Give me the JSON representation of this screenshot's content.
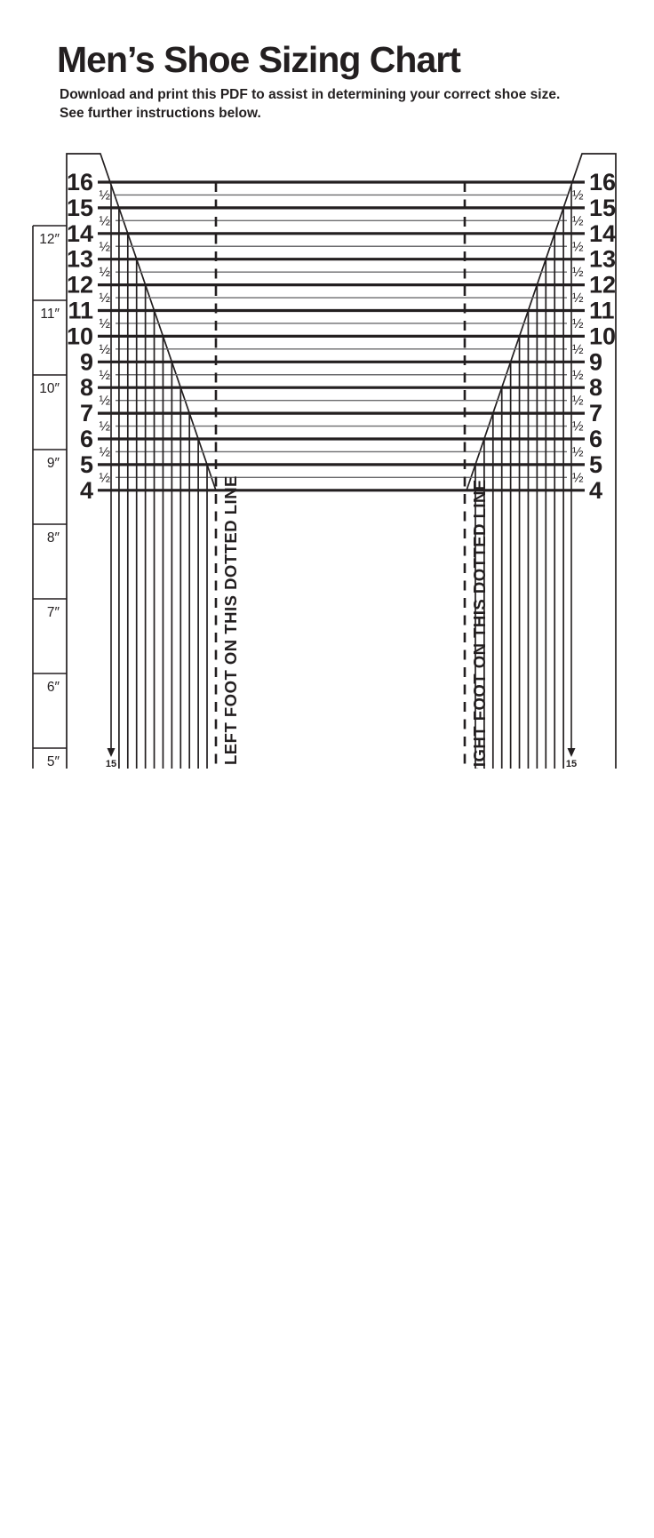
{
  "page": {
    "title": "Men’s Shoe Sizing Chart",
    "subtitle_line1": "Download and print this PDF to assist in determining your correct shoe size.",
    "subtitle_line2": "See further instructions below."
  },
  "chart": {
    "full_sizes": [
      "16",
      "15",
      "14",
      "13",
      "12",
      "11",
      "10",
      "9",
      "8",
      "7",
      "6",
      "5",
      "4"
    ],
    "half_label": "½",
    "ruler_inch_labels": [
      "12″",
      "11″",
      "10″",
      "9″",
      "8″",
      "7″",
      "6″",
      "5″"
    ],
    "left_caption": "LEFT FOOT ON THIS DOTTED LINE",
    "right_caption": "RIGHT FOOT ON THIS DOTTED LINE",
    "arrow_label": "15",
    "colors": {
      "ink": "#231f20",
      "half_line": "#6b6b6e"
    }
  }
}
